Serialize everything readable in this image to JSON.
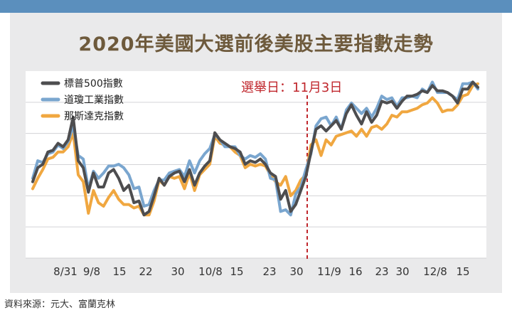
{
  "title": "2020年美國大選前後美股主要指數走勢",
  "source": "資料來源：元大、富蘭克林",
  "annotation": "選舉日：11月3日",
  "colors": {
    "sp500": "#4d4d4f",
    "dow": "#7aa6cf",
    "nasdaq": "#f0a740",
    "annotation": "#c0272d",
    "title": "#6e5a3c"
  },
  "chart_data": {
    "type": "line",
    "title": "2020年美國大選前後美股主要指數走勢",
    "x_tick_labels": [
      "8/31",
      "9/8",
      "15",
      "22",
      "30",
      "10/8",
      "15",
      "23",
      "30",
      "11/9",
      "16",
      "23",
      "30",
      "12/8",
      "15"
    ],
    "event_marker": {
      "label": "選舉日：11月3日",
      "date": "11/3"
    },
    "legend_position": "top-left",
    "grid": "horizontal",
    "series": [
      {
        "name": "標普500指數",
        "color": "#4d4d4f",
        "values": [
          40,
          48,
          50,
          57,
          58,
          62,
          60,
          64,
          77,
          52,
          48,
          34,
          45,
          37,
          37,
          45,
          47,
          42,
          35,
          38,
          28,
          29,
          21,
          23,
          32,
          42,
          38,
          43,
          45,
          46,
          40,
          47,
          38,
          45,
          49,
          52,
          68,
          64,
          62,
          60,
          59,
          57,
          50,
          52,
          51,
          53,
          50,
          45,
          43,
          30,
          35,
          23,
          27,
          35,
          43,
          57,
          70,
          72,
          69,
          72,
          75,
          70,
          79,
          84,
          78,
          73,
          80,
          74,
          78,
          86,
          85,
          86,
          82,
          86,
          89,
          89,
          90,
          92,
          91,
          95,
          92,
          92,
          91,
          89,
          85,
          93,
          93,
          97,
          94
        ]
      },
      {
        "name": "道瓊工業指數",
        "color": "#7aa6cf",
        "values": [
          42,
          52,
          51,
          56,
          57,
          61,
          59,
          63,
          72,
          55,
          53,
          36,
          46,
          42,
          45,
          49,
          49,
          50,
          48,
          44,
          36,
          37,
          26,
          27,
          35,
          41,
          41,
          45,
          46,
          47,
          43,
          52,
          45,
          52,
          56,
          59,
          67,
          64,
          60,
          60,
          60,
          55,
          53,
          55,
          54,
          56,
          53,
          42,
          41,
          23,
          24,
          21,
          33,
          37,
          47,
          56,
          72,
          76,
          77,
          72,
          77,
          70,
          81,
          85,
          82,
          79,
          82,
          77,
          82,
          89,
          87,
          88,
          83,
          88,
          88,
          89,
          88,
          93,
          91,
          97,
          91,
          91,
          91,
          89,
          87,
          96,
          96,
          97,
          93
        ]
      },
      {
        "name": "那斯達克指數",
        "color": "#f0a740",
        "values": [
          36,
          42,
          47,
          53,
          54,
          57,
          57,
          60,
          68,
          44,
          40,
          22,
          35,
          28,
          26,
          31,
          35,
          30,
          27,
          27,
          25,
          26,
          21,
          21,
          29,
          41,
          38,
          43,
          42,
          43,
          36,
          45,
          35,
          44,
          47,
          50,
          66,
          62,
          61,
          60,
          57,
          55,
          48,
          50,
          49,
          50,
          49,
          44,
          40,
          38,
          43,
          32,
          35,
          41,
          44,
          61,
          64,
          55,
          64,
          61,
          66,
          67,
          68,
          69,
          66,
          70,
          66,
          71,
          72,
          70,
          73,
          78,
          77,
          80,
          80,
          81,
          82,
          84,
          85,
          88,
          85,
          80,
          81,
          81,
          84,
          89,
          90,
          95,
          96
        ]
      }
    ]
  }
}
